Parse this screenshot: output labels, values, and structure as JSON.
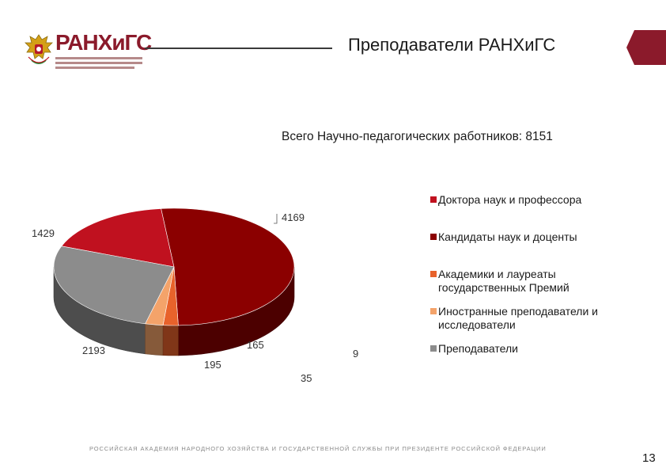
{
  "header": {
    "brand": "РАНХиГС",
    "title": "Преподаватели РАНХиГС"
  },
  "colors": {
    "brand": "#8b1a2b",
    "doctors": "#c0111f",
    "candidates": "#8b0000",
    "academicians": "#e8622b",
    "foreign": "#f4a36a",
    "teachers": "#8c8c8c"
  },
  "subtitle": "Всего Научно-педагогических работников: 8151",
  "chart_data": {
    "type": "pie",
    "title": "",
    "series": [
      {
        "name": "Доктора наук и профессора",
        "value": 1429,
        "color": "#c0111f"
      },
      {
        "name": "Кандидаты наук и доценты",
        "value": 4169,
        "color": "#8b0000"
      },
      {
        "name": "Академики и лауреаты государственных Премий",
        "value": 165,
        "color": "#e8622b"
      },
      {
        "name": "Иностранные преподаватели и исследователи",
        "value": 195,
        "color": "#f4a36a"
      },
      {
        "name": "Преподаватели",
        "value": 2193,
        "color": "#8c8c8c"
      }
    ],
    "extra_labels": [
      "9",
      "35"
    ],
    "legend_position": "right",
    "three_d": true
  },
  "footer": "РОССИЙСКАЯ АКАДЕМИЯ НАРОДНОГО ХОЗЯЙСТВА И ГОСУДАРСТВЕННОЙ СЛУЖБЫ ПРИ ПРЕЗИДЕНТЕ РОССИЙСКОЙ ФЕДЕРАЦИИ",
  "page_number": "13"
}
